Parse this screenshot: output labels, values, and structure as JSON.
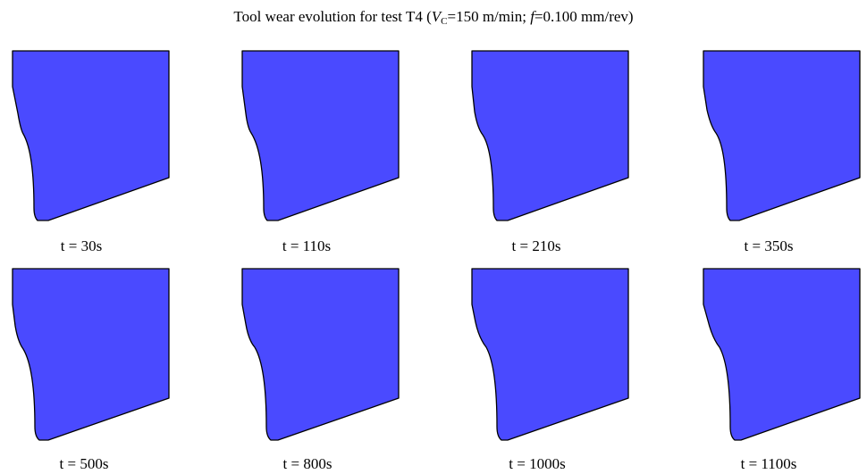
{
  "title": {
    "prefix": "Tool wear evolution for test T4 (",
    "vc_symbol": "V",
    "vc_sub": "C",
    "vc_value": "=150 m/min; ",
    "f_symbol": "f",
    "f_value": "=0.100 mm/rev)"
  },
  "colors": {
    "tool_fill": "#4a4aff",
    "outline": "#000000"
  },
  "panels": [
    {
      "label": "t = 30s"
    },
    {
      "label": "t = 110s"
    },
    {
      "label": "t = 210s"
    },
    {
      "label": "t = 350s"
    },
    {
      "label": "t = 500s"
    },
    {
      "label": "t = 800s"
    },
    {
      "label": "t = 1000s"
    },
    {
      "label": "t = 1100s"
    }
  ]
}
